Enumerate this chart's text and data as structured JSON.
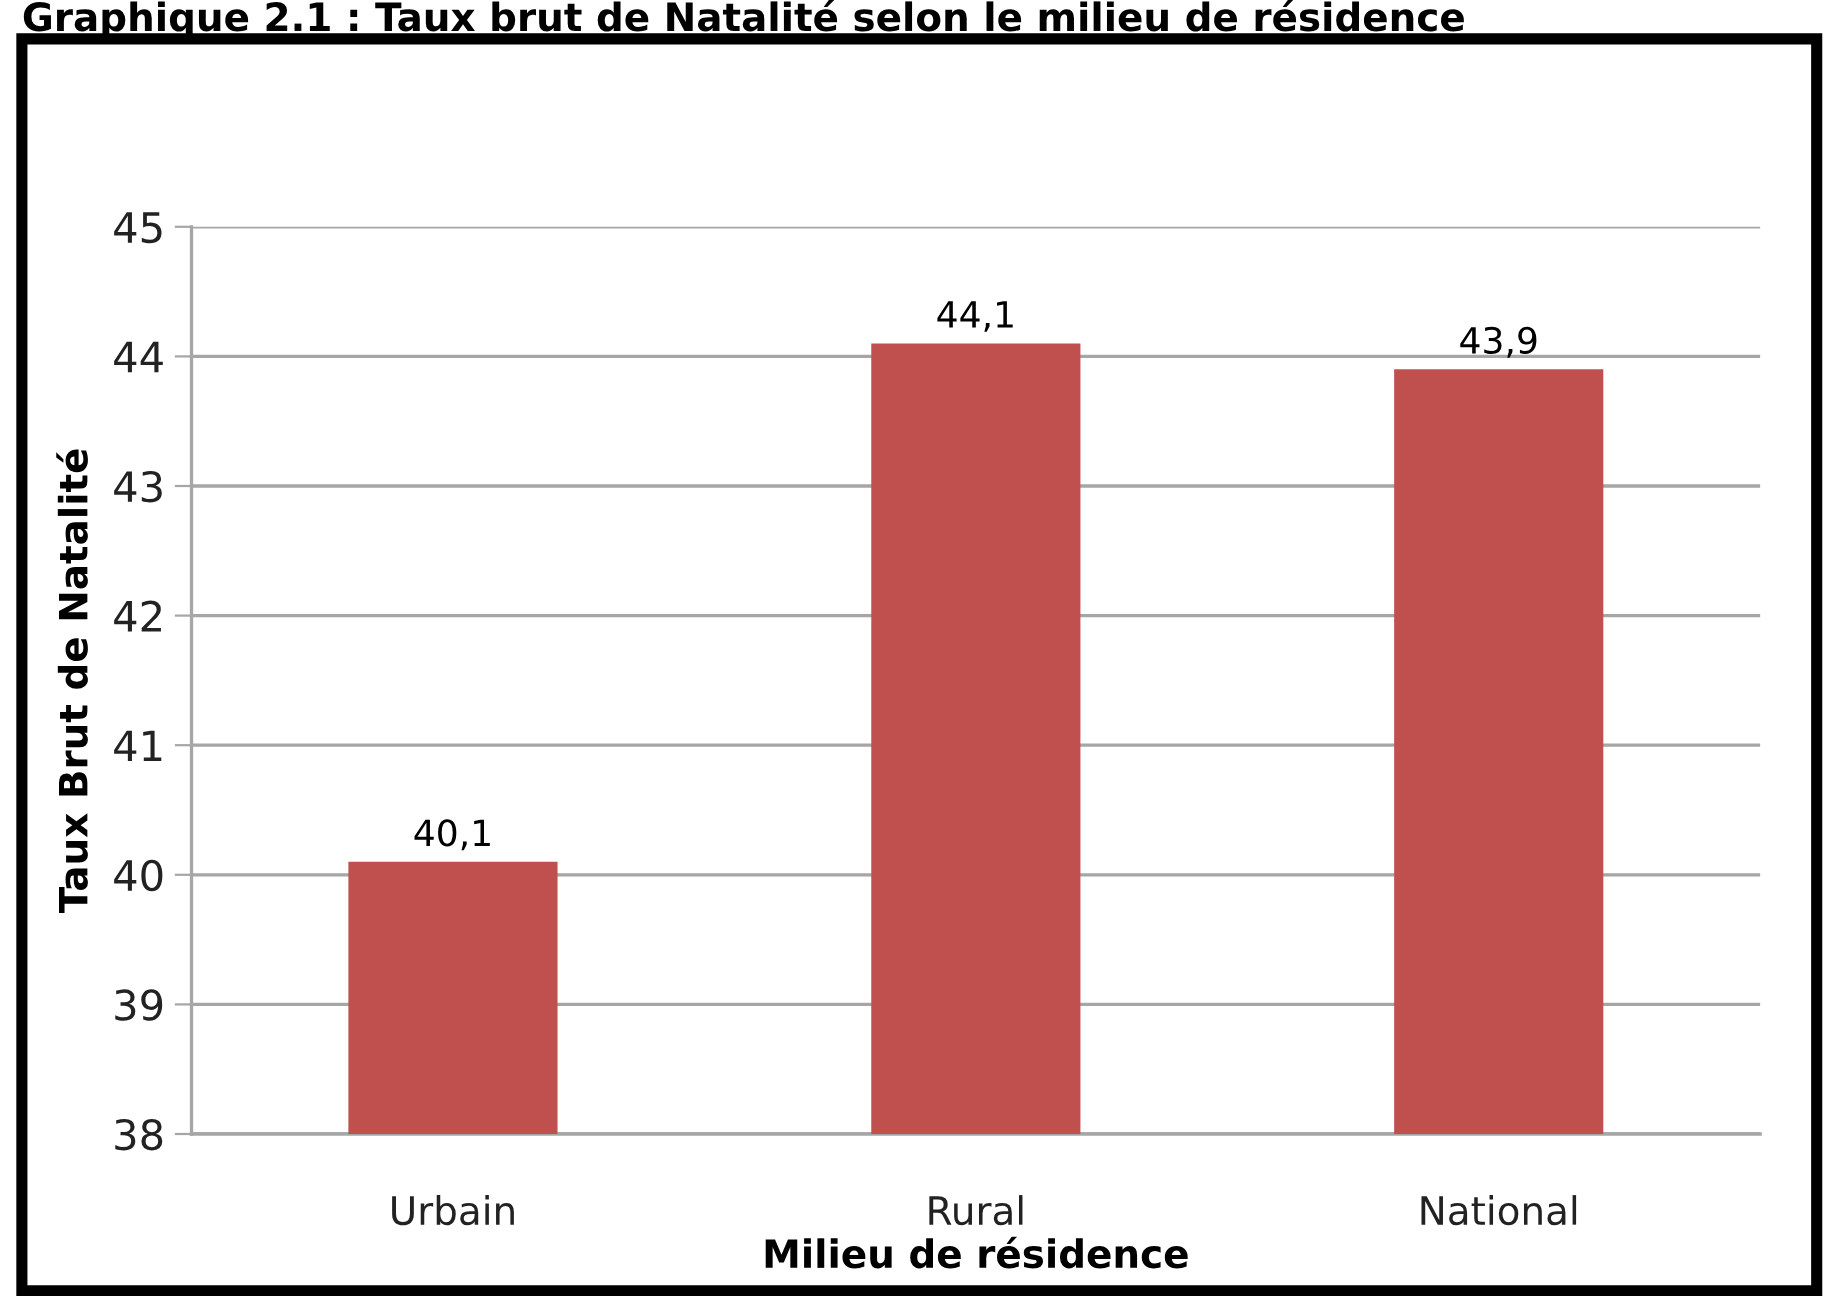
{
  "chart_data": {
    "type": "bar",
    "title": "Graphique 2.1 : Taux brut de Natalité selon le milieu de résidence",
    "xlabel": "Milieu de résidence",
    "ylabel": "Taux Brut de Natalité",
    "categories": [
      "Urbain",
      "Rural",
      "National"
    ],
    "values": [
      40.1,
      44.1,
      43.9
    ],
    "value_labels": [
      "40,1",
      "44,1",
      "43,9"
    ],
    "color": "#c0504d",
    "ylim": [
      38,
      45
    ],
    "yticks": [
      38,
      39,
      40,
      41,
      42,
      43,
      44,
      45
    ],
    "grid": "y",
    "legend": false
  }
}
